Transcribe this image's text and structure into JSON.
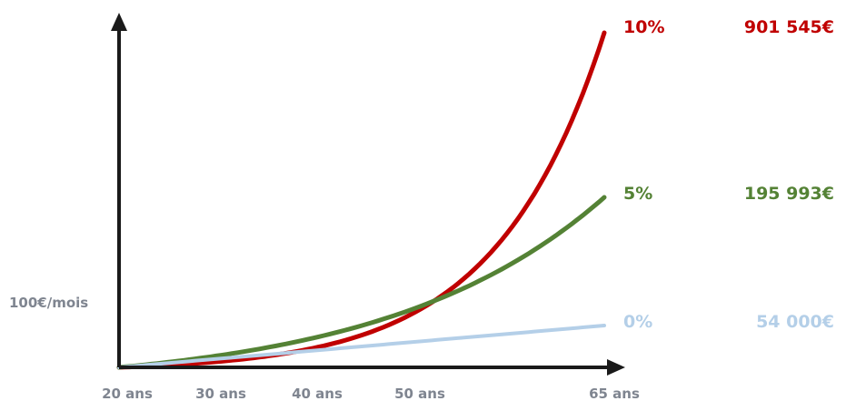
{
  "chart_data": {
    "type": "line",
    "title": "",
    "xlabel": "",
    "ylabel": "",
    "y_annotation": "100€/mois",
    "x_ticks": [
      {
        "value": 20,
        "label": "20 ans"
      },
      {
        "value": 30,
        "label": "30 ans"
      },
      {
        "value": 40,
        "label": "40 ans"
      },
      {
        "value": 50,
        "label": "50 ans"
      },
      {
        "value": 65,
        "label": "65 ans"
      }
    ],
    "xlim": [
      20,
      65
    ],
    "ylim": [
      0,
      950000
    ],
    "grid": false,
    "legend": "right-end labels",
    "monthly_contribution": 100,
    "series": [
      {
        "name": "10%",
        "rate": 0.1,
        "final_label": "901 545€",
        "final_value": 901545,
        "color": "#c00000"
      },
      {
        "name": "5%",
        "rate": 0.05,
        "final_label": "195 993€",
        "final_value": 195993,
        "color": "#548235"
      },
      {
        "name": "0%",
        "rate": 0.0,
        "final_label": "54 000€",
        "final_value": 54000,
        "color": "#b4cfe8"
      }
    ]
  }
}
